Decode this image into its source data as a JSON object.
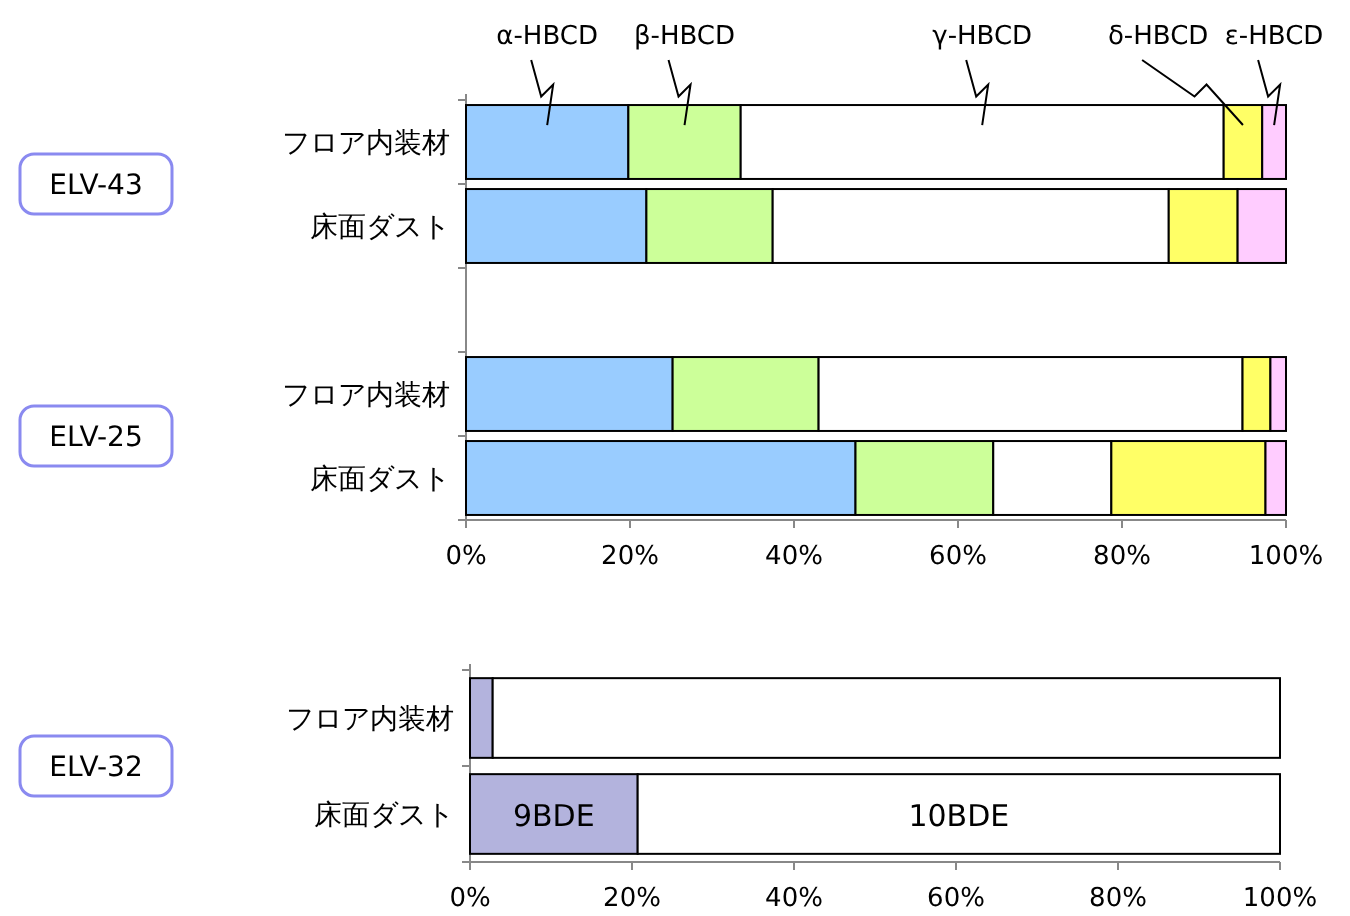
{
  "chart_data": [
    {
      "type": "bar",
      "orientation": "horizontal",
      "stacked": true,
      "grid": false,
      "categories": [
        "フロア内装材",
        "床面ダスト",
        null,
        "フロア内装材",
        "床面ダスト"
      ],
      "series": [
        {
          "name": "α-HBCD",
          "color": "#99ccff",
          "values": [
            19.8,
            22.0,
            null,
            25.2,
            47.5
          ]
        },
        {
          "name": "β-HBCD",
          "color": "#ccff99",
          "values": [
            13.7,
            15.4,
            null,
            17.8,
            16.8
          ]
        },
        {
          "name": "γ-HBCD",
          "color": "#ffffff",
          "values": [
            58.9,
            48.3,
            null,
            51.7,
            14.4
          ]
        },
        {
          "name": "δ-HBCD",
          "color": "#ffff66",
          "values": [
            4.7,
            8.4,
            null,
            3.4,
            18.8
          ]
        },
        {
          "name": "ε-HBCD",
          "color": "#ffccff",
          "values": [
            2.9,
            5.9,
            null,
            1.9,
            2.5
          ]
        }
      ],
      "xlim": [
        0,
        100
      ],
      "xticks": [
        {
          "value": 0,
          "label": "0%"
        },
        {
          "value": 20,
          "label": "20%"
        },
        {
          "value": 40,
          "label": "40%"
        },
        {
          "value": 60,
          "label": "60%"
        },
        {
          "value": 80,
          "label": "80%"
        },
        {
          "value": 100,
          "label": "100%"
        }
      ],
      "annotations": [
        "ELV-43",
        "ELV-25"
      ]
    },
    {
      "type": "bar",
      "orientation": "horizontal",
      "stacked": true,
      "grid": false,
      "categories": [
        "フロア内装材",
        "床面ダスト"
      ],
      "series": [
        {
          "name": "9BDE",
          "color": "#b3b3dd",
          "values": [
            2.8,
            20.7
          ]
        },
        {
          "name": "10BDE",
          "color": "#ffffff",
          "values": [
            97.2,
            79.3
          ]
        }
      ],
      "xlim": [
        0,
        100
      ],
      "xticks": [
        {
          "value": 0,
          "label": "0%"
        },
        {
          "value": 20,
          "label": "20%"
        },
        {
          "value": 40,
          "label": "40%"
        },
        {
          "value": 60,
          "label": "60%"
        },
        {
          "value": 80,
          "label": "80%"
        },
        {
          "value": 100,
          "label": "100%"
        }
      ],
      "annotations": [
        "ELV-32"
      ]
    }
  ]
}
